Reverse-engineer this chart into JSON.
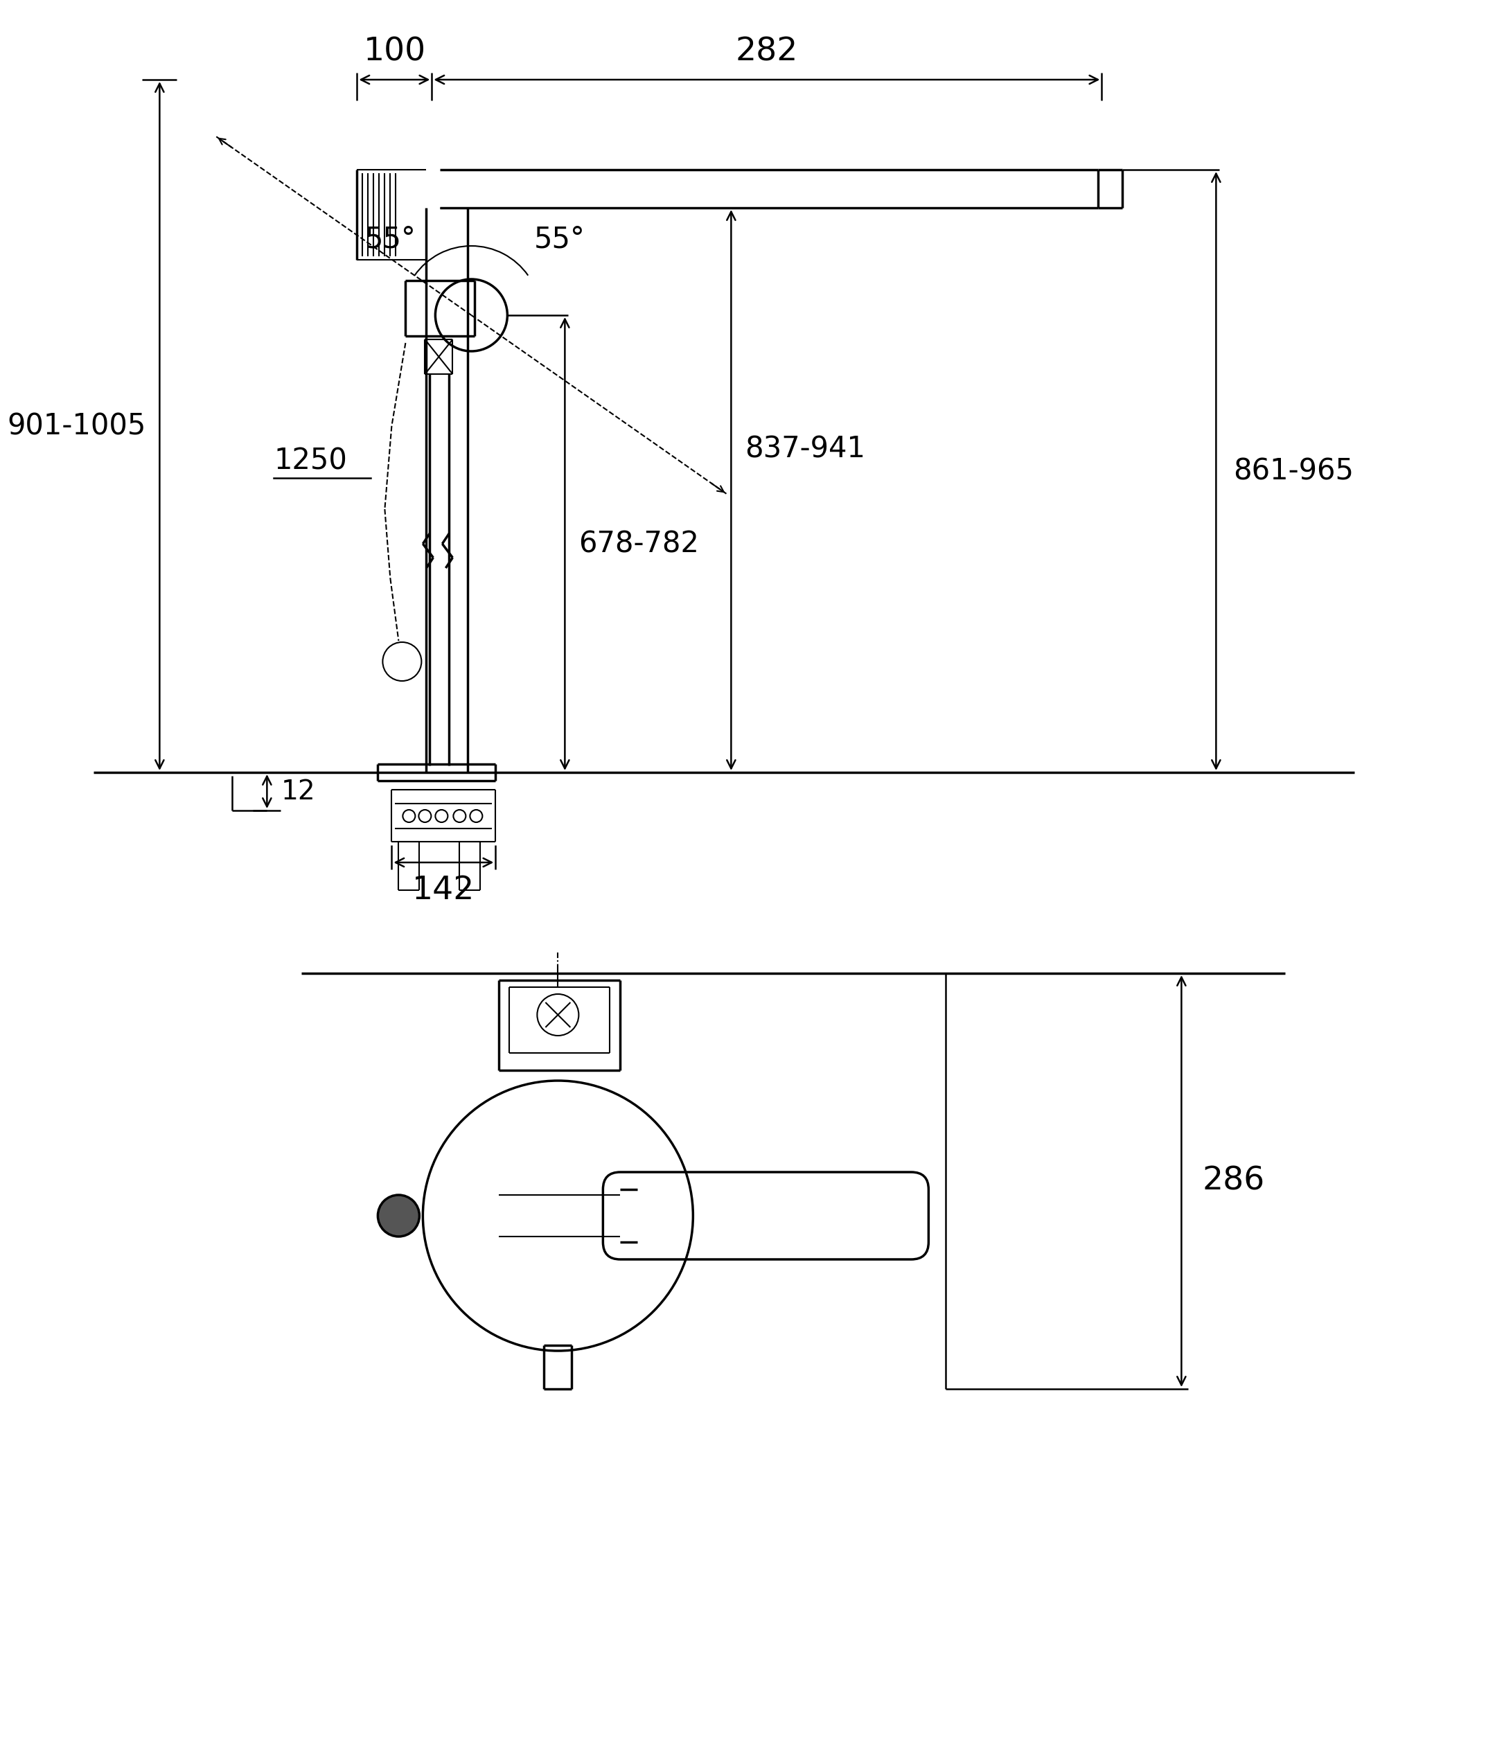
{
  "bg_color": "#ffffff",
  "line_color": "#000000",
  "fig_width": 21.06,
  "fig_height": 25.25,
  "texts": {
    "dim_100": "100",
    "dim_282": "282",
    "dim_55left": "55°",
    "dim_55right": "55°",
    "dim_901": "901-1005",
    "dim_1250": "1250",
    "dim_678": "678-782",
    "dim_837": "837-941",
    "dim_861": "861-965",
    "dim_12": "12",
    "dim_142": "142",
    "dim_286": "286"
  }
}
